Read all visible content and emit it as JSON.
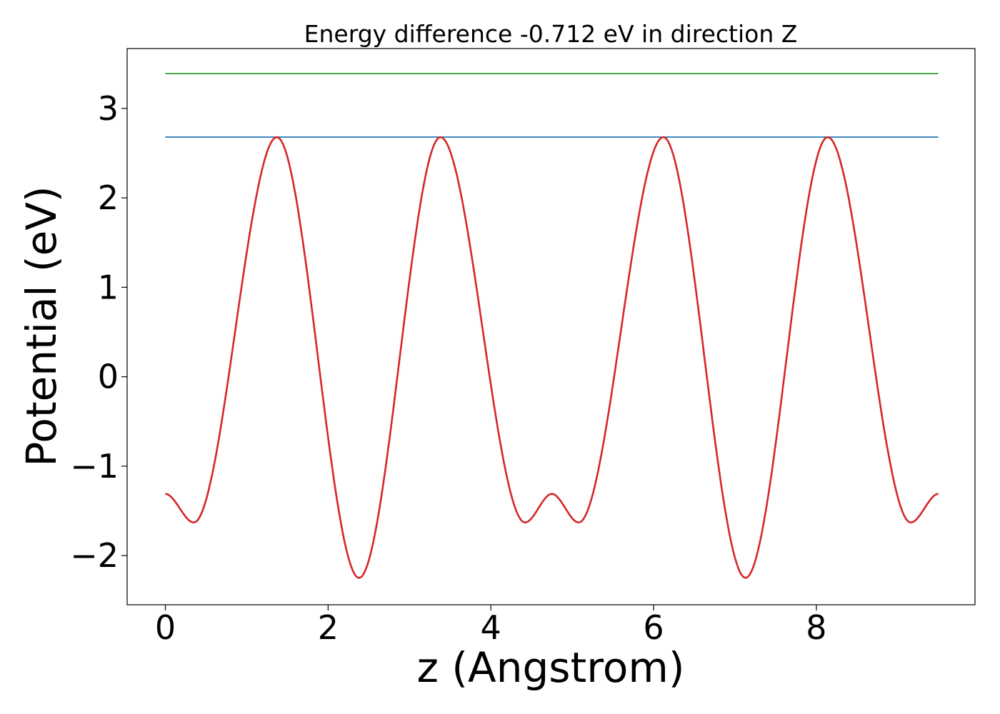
{
  "chart_data": {
    "type": "line",
    "title": "Energy difference -0.712 eV in direction Z",
    "xlabel": "z (Angstrom)",
    "ylabel": "Potential (eV)",
    "xlim": [
      -0.47,
      9.95
    ],
    "ylim": [
      -2.55,
      3.67
    ],
    "xticks": [
      0,
      2,
      4,
      6,
      8
    ],
    "xtick_labels": [
      "0",
      "2",
      "4",
      "6",
      "8"
    ],
    "yticks": [
      -2,
      -1,
      0,
      1,
      2,
      3
    ],
    "ytick_labels": [
      "−2",
      "−1",
      "0",
      "1",
      "2",
      "3"
    ],
    "grid": false,
    "legend": "none",
    "series": [
      {
        "color": "#d62728",
        "x": [
          0.0,
          0.35,
          1.37,
          2.38,
          3.38,
          4.42,
          4.75,
          5.08,
          6.12,
          7.13,
          8.14,
          9.16,
          9.5
        ],
        "y": [
          -1.31,
          -1.63,
          2.68,
          -2.25,
          2.68,
          -1.63,
          -1.31,
          -1.63,
          2.68,
          -2.25,
          2.68,
          -1.63,
          -1.31
        ]
      },
      {
        "color": "#1f77b4",
        "x": [
          0.0,
          9.5
        ],
        "y": [
          2.68,
          2.68
        ]
      },
      {
        "color": "#2ca02c",
        "x": [
          0.0,
          9.5
        ],
        "y": [
          3.39,
          3.39
        ]
      }
    ]
  }
}
